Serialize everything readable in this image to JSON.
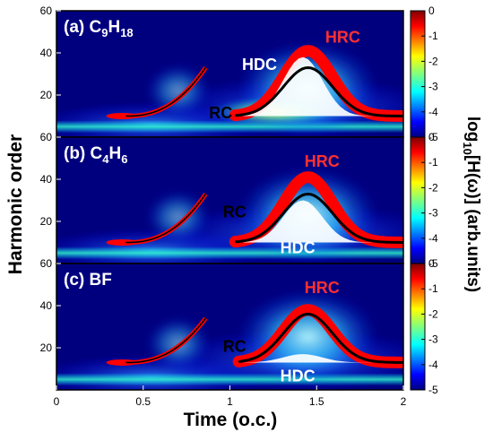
{
  "colors": {
    "background": "#00007f",
    "rc_curve": "#000000",
    "red_trace": "#ff0000",
    "hdc_fill": "#ffffff",
    "frame": "#000000"
  },
  "chart_data": {
    "type": "heatmap",
    "xlabel": "Time (o.c.)",
    "ylabel": "Harmonic order",
    "xlim": [
      0,
      2
    ],
    "ylim": [
      0,
      60
    ],
    "x_ticks": [
      "0",
      "0.5",
      "1",
      "1.5",
      "2"
    ],
    "y_ticks": [
      "20",
      "40",
      "60"
    ],
    "colorbar": {
      "label": "log10[H(ω)] (arb.units)",
      "label_main": "log",
      "label_sub": "10",
      "label_rest": "[H(ω)] (arb.units)",
      "range": [
        -5,
        0
      ],
      "ticks": [
        "0",
        "-1",
        "-2",
        "-3",
        "-4",
        "-5"
      ]
    },
    "panels": [
      {
        "label_prefix": "(a) C",
        "sub1": "9",
        "mid": "H",
        "sub2": "18",
        "annotations": [
          {
            "text": "HRC",
            "x": 1.55,
            "y": 45,
            "color": "#ff3030"
          },
          {
            "text": "HDC",
            "x": 1.07,
            "y": 32,
            "color": "#ffffff"
          },
          {
            "text": "RC",
            "x": 0.88,
            "y": 9,
            "color": "#000000"
          }
        ],
        "rc_curve": {
          "x0": 1.03,
          "peak_x": 1.45,
          "peak_y": 33,
          "base_y": 10,
          "end_x": 2.0
        },
        "hrc_peak_y": 41,
        "hdc_peak_y": 38,
        "short_traj": {
          "x0": 0.4,
          "x1": 0.86,
          "y0": 10,
          "y1": 33
        }
      },
      {
        "label_prefix": "(b) C",
        "sub1": "4",
        "mid": "H",
        "sub2": "6",
        "annotations": [
          {
            "text": "HRC",
            "x": 1.43,
            "y": 46,
            "color": "#ff3030"
          },
          {
            "text": "RC",
            "x": 0.96,
            "y": 22,
            "color": "#000000"
          },
          {
            "text": "HDC",
            "x": 1.29,
            "y": 5,
            "color": "#ffffff"
          }
        ],
        "rc_curve": {
          "x0": 1.03,
          "peak_x": 1.45,
          "peak_y": 33,
          "base_y": 10,
          "end_x": 2.0
        },
        "hrc_peak_y": 41,
        "hdc_peak_y": 30,
        "short_traj": {
          "x0": 0.4,
          "x1": 0.86,
          "y0": 10,
          "y1": 33
        }
      },
      {
        "label_prefix": "(c) BF",
        "sub1": "",
        "mid": "",
        "sub2": "",
        "annotations": [
          {
            "text": "HRC",
            "x": 1.43,
            "y": 46,
            "color": "#ff3030"
          },
          {
            "text": "RC",
            "x": 0.96,
            "y": 18,
            "color": "#000000"
          },
          {
            "text": "HDC",
            "x": 1.29,
            "y": 4,
            "color": "#ffffff"
          }
        ],
        "rc_curve": {
          "x0": 1.05,
          "peak_x": 1.45,
          "peak_y": 36,
          "base_y": 13,
          "end_x": 2.0
        },
        "hrc_peak_y": 38,
        "hdc_peak_y": 17,
        "short_traj": {
          "x0": 0.4,
          "x1": 0.86,
          "y0": 13,
          "y1": 34
        }
      }
    ]
  }
}
